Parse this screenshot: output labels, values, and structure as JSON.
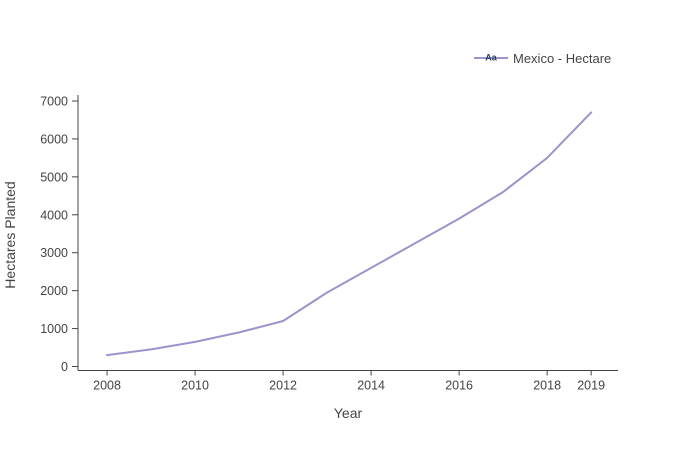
{
  "legend": {
    "marker_text": "Aa",
    "label": "Mexico - Hectare"
  },
  "colors": {
    "line": "#9a94cc",
    "axis": "#444444",
    "tick_text": "#444444",
    "legend_marker_text": "#2a3f5f",
    "background": "#ffffff"
  },
  "chart_data": {
    "type": "line",
    "title": "",
    "xlabel": "Year",
    "ylabel": "Hectares Planted",
    "series": [
      {
        "name": "Mexico - Hectare",
        "x": [
          2008,
          2009,
          2010,
          2011,
          2012,
          2013,
          2014,
          2015,
          2016,
          2017,
          2018,
          2019
        ],
        "values": [
          300,
          450,
          650,
          900,
          1200,
          1950,
          2600,
          3250,
          3900,
          4600,
          5500,
          6700
        ]
      }
    ],
    "x_ticks": [
      2008,
      2010,
      2012,
      2014,
      2016,
      2018,
      2019
    ],
    "y_ticks": [
      0,
      1000,
      2000,
      3000,
      4000,
      5000,
      6000,
      7000
    ],
    "xlim": [
      2007.34,
      2019.61
    ],
    "ylim": [
      -105,
      7158
    ],
    "grid": false,
    "legend_position": "top-right"
  }
}
